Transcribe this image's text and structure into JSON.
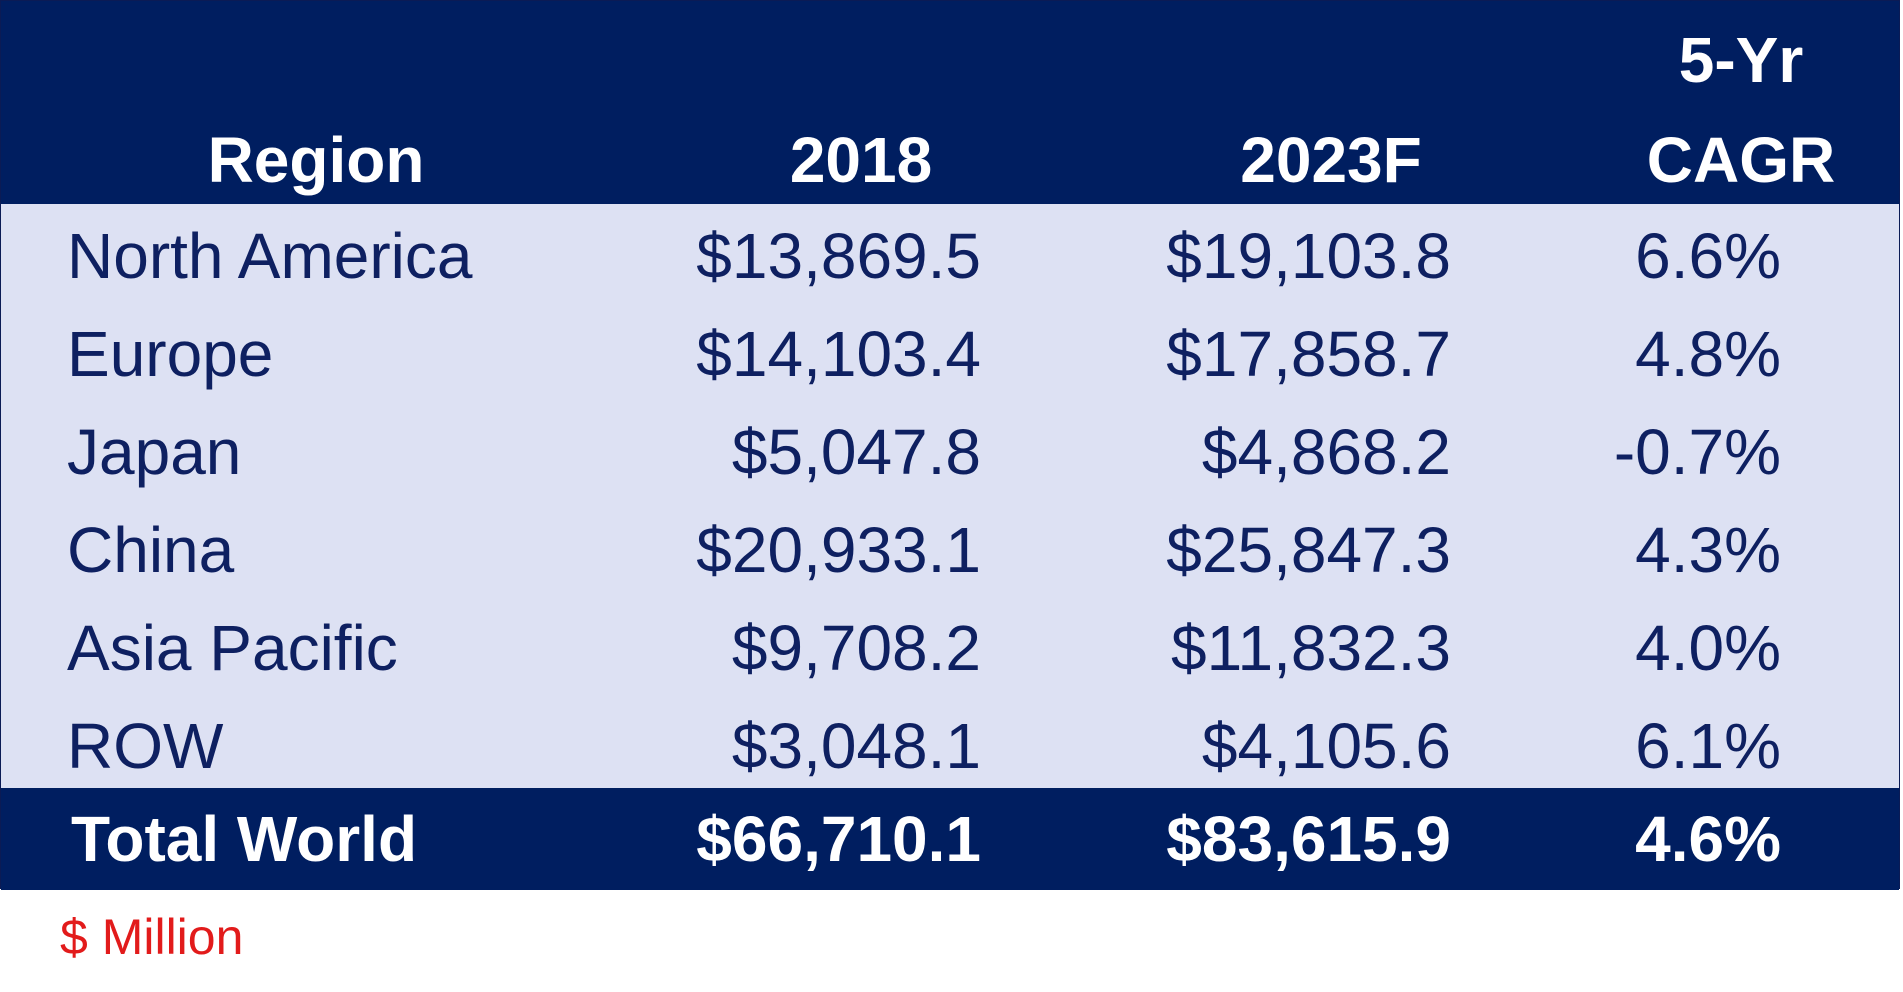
{
  "chart_data": {
    "type": "table",
    "columns": [
      "Region",
      "2018",
      "2023F",
      "5-Yr CAGR"
    ],
    "header": {
      "region": "Region",
      "y2018": "2018",
      "y2023": "2023F",
      "cagr_line1": "5-Yr",
      "cagr_line2": "CAGR"
    },
    "rows": [
      {
        "region": "North America",
        "y2018": "$13,869.5",
        "y2023": "$19,103.8",
        "cagr": "6.6%"
      },
      {
        "region": "Europe",
        "y2018": "$14,103.4",
        "y2023": "$17,858.7",
        "cagr": "4.8%"
      },
      {
        "region": "Japan",
        "y2018": "$5,047.8",
        "y2023": "$4,868.2",
        "cagr": "-0.7%"
      },
      {
        "region": "China",
        "y2018": "$20,933.1",
        "y2023": "$25,847.3",
        "cagr": "4.3%"
      },
      {
        "region": "Asia Pacific",
        "y2018": "$9,708.2",
        "y2023": "$11,832.3",
        "cagr": "4.0%"
      },
      {
        "region": "ROW",
        "y2018": "$3,048.1",
        "y2023": "$4,105.6",
        "cagr": "6.1%"
      }
    ],
    "total": {
      "region": "Total World",
      "y2018": "$66,710.1",
      "y2023": "$83,615.9",
      "cagr": "4.6%"
    },
    "unit_note": "$ Million"
  },
  "colors": {
    "header_bg": "#001e60",
    "body_bg": "#dde1f3",
    "body_text": "#0e2061",
    "header_text": "#ffffff",
    "note_text": "#e21b1b"
  }
}
